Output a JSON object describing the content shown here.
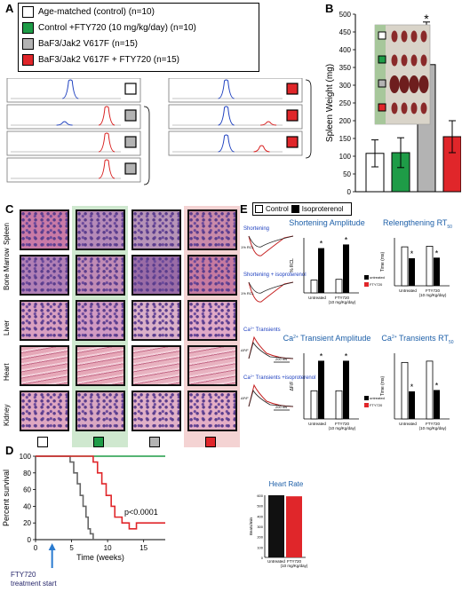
{
  "panels": {
    "A": "A",
    "B": "B",
    "C": "C",
    "D": "D",
    "E": "E"
  },
  "legend": {
    "items": [
      {
        "label": "Age-matched (control) (n=10)",
        "color": "#ffffff"
      },
      {
        "label": "Control +FTY720 (10 mg/kg/day) (n=10)",
        "color": "#1e9c47"
      },
      {
        "label": "BaF3/Jak2 V617F (n=15)",
        "color": "#b3b3b3"
      },
      {
        "label": "BaF3/Jak2 V617F + FTY720 (n=15)",
        "color": "#e0262a"
      }
    ]
  },
  "panel_c": {
    "rows": [
      "Spleen",
      "Bone Marrow",
      "Liver",
      "Heart",
      "Kidney"
    ]
  },
  "chart_data": [
    {
      "type": "bar",
      "panel": "B",
      "categories": [
        "Age-matched (control)",
        "Control +FTY720",
        "BaF3/Jak2 V617F",
        "BaF3/Jak2 V617F + FTY720"
      ],
      "values": [
        108,
        110,
        358,
        155
      ],
      "errors": [
        38,
        42,
        120,
        45
      ],
      "colors": [
        "#ffffff",
        "#1e9c47",
        "#b3b3b3",
        "#e0262a"
      ],
      "ylabel": "Spleen Weight (mg)",
      "yticks": [
        "0",
        "50",
        "100",
        "150",
        "200",
        "250",
        "300",
        "350",
        "400",
        "450",
        "500"
      ],
      "ylim": [
        0,
        500
      ],
      "annotation": "*"
    },
    {
      "type": "line",
      "panel": "D",
      "ylabel": "Percent survival",
      "xlabel": "Time (weeks)",
      "xticks": [
        "0",
        "5",
        "10",
        "15"
      ],
      "yticks": [
        "0",
        "20",
        "40",
        "60",
        "80",
        "100"
      ],
      "xlim": [
        0,
        18
      ],
      "ylim": [
        0,
        100
      ],
      "series": [
        {
          "color": "#1e9c47",
          "x": [
            0,
            18
          ],
          "y": [
            100,
            100
          ]
        },
        {
          "color": "#666666",
          "x": [
            0,
            4.8,
            4.8,
            5.3,
            5.3,
            5.8,
            5.8,
            6.2,
            6.2,
            6.6,
            6.6,
            7,
            7,
            7.3,
            7.3,
            7.6,
            7.6,
            8,
            8
          ],
          "y": [
            100,
            100,
            93,
            93,
            80,
            80,
            67,
            67,
            53,
            53,
            40,
            40,
            27,
            27,
            13,
            13,
            7,
            7,
            0
          ]
        },
        {
          "color": "#e0262a",
          "x": [
            0,
            8,
            8,
            8.6,
            8.6,
            9.2,
            9.2,
            9.8,
            9.8,
            10.5,
            10.5,
            11,
            11,
            12,
            12,
            13,
            13,
            14,
            14,
            18
          ],
          "y": [
            100,
            100,
            93,
            93,
            80,
            80,
            67,
            67,
            53,
            53,
            40,
            40,
            27,
            27,
            20,
            20,
            13,
            13,
            20,
            20
          ]
        }
      ],
      "annotation": "p<0.0001",
      "arrow_label": "FTY720 treatment start"
    },
    {
      "type": "bar",
      "panel": "E-shortening",
      "title": "Shortening Amplitude",
      "ylabel": "% RCL",
      "categories": [
        "Untreated",
        "FTY720 (10 mg/Kg/day)"
      ],
      "control": [
        3.5,
        3.7
      ],
      "treated": [
        12.2,
        13.2
      ],
      "ylim": [
        0,
        15
      ]
    },
    {
      "type": "bar",
      "panel": "E-relengthening",
      "title": "Relengthening RT",
      "title_sub": "50",
      "ylabel": "Time (ms)",
      "categories": [
        "Untreated",
        "FTY720 (10 mg/Kg/day)"
      ],
      "control": [
        325,
        330
      ],
      "treated": [
        230,
        235
      ],
      "ylim": [
        0,
        400
      ]
    },
    {
      "type": "bar",
      "panel": "E-ca-amplitude",
      "title": "Transient Amplitude",
      "title_prefix": "Ca",
      "title_sup": "2+",
      "ylabel": "ΔF/F",
      "categories": [
        "Untreated",
        "FTY720 (10 mg/Kg/day)"
      ],
      "control": [
        1.5,
        1.5
      ],
      "treated": [
        3.1,
        3.1
      ],
      "ylim": [
        0,
        3.5
      ]
    },
    {
      "type": "bar",
      "panel": "E-ca-rt",
      "title": "Transients RT",
      "title_prefix": "Ca",
      "title_sup": "2+",
      "title_sub": "50",
      "ylabel": "Time (ms)",
      "categories": [
        "Untreated",
        "FTY720 (10 mg/Kg/day)"
      ],
      "control": [
        215,
        220
      ],
      "treated": [
        105,
        110
      ],
      "ylim": [
        0,
        250
      ]
    },
    {
      "type": "bar",
      "panel": "E-heart-rate",
      "title": "Heart Rate",
      "ylabel": "Beats/min",
      "categories": [
        "Untreated",
        "FTY720 (10 mg/Kg/day)"
      ],
      "values": [
        600,
        590
      ],
      "colors": [
        "#111111",
        "#e0262a"
      ],
      "ylim": [
        0,
        600
      ]
    }
  ],
  "panel_e": {
    "legend_control": "Control",
    "legend_iso": "Isoproterenol",
    "legend_untreated": "untreated",
    "legend_fty": "FTY720",
    "trace_shortening": "Shortening",
    "trace_shortening_iso": "Shortening + isoproterenol",
    "trace_ca": "Transients",
    "trace_ca_iso": "Transients +isoproterenol",
    "ca_prefix": "Ca",
    "ca_sup": "2+",
    "rcl_label": "1% RCL",
    "df_label": "ΔF/F",
    "ms_label": "200 ms",
    "star": "*"
  }
}
